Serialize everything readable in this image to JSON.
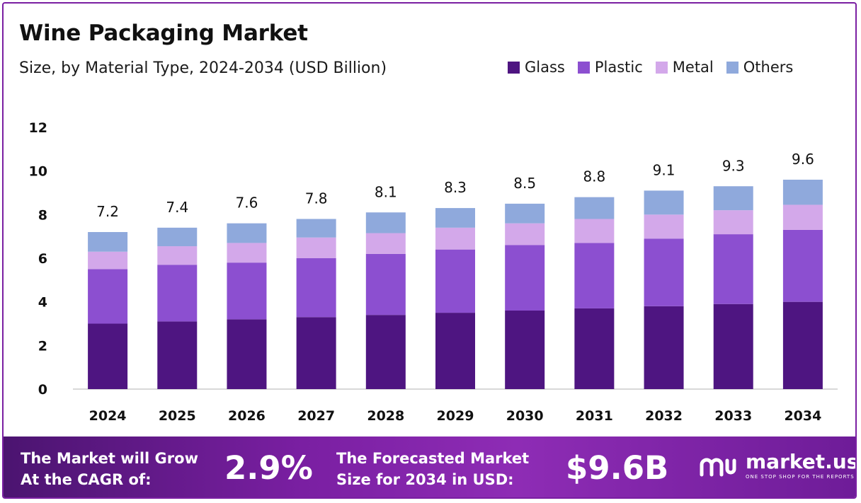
{
  "header": {
    "title": "Wine Packaging Market",
    "subtitle": "Size, by Material Type, 2024-2034 (USD Billion)"
  },
  "legend": [
    {
      "label": "Glass",
      "color": "#4e1581"
    },
    {
      "label": "Plastic",
      "color": "#8c4fd0"
    },
    {
      "label": "Metal",
      "color": "#d3a8ea"
    },
    {
      "label": "Others",
      "color": "#8fa9dc"
    }
  ],
  "chart_data": {
    "type": "bar",
    "stacked": true,
    "title": "Wine Packaging Market",
    "subtitle": "Size, by Material Type, 2024-2034 (USD Billion)",
    "xlabel": "",
    "ylabel": "",
    "ylim": [
      0,
      12
    ],
    "yticks": [
      0,
      2,
      4,
      6,
      8,
      10,
      12
    ],
    "grid": false,
    "legend_position": "top-right",
    "categories": [
      "2024",
      "2025",
      "2026",
      "2027",
      "2028",
      "2029",
      "2030",
      "2031",
      "2032",
      "2033",
      "2034"
    ],
    "totals": [
      "7.2",
      "7.4",
      "7.6",
      "7.8",
      "8.1",
      "8.3",
      "8.5",
      "8.8",
      "9.1",
      "9.3",
      "9.6"
    ],
    "series": [
      {
        "name": "Glass",
        "color": "#4e1581",
        "values": [
          3.0,
          3.1,
          3.2,
          3.3,
          3.4,
          3.5,
          3.6,
          3.7,
          3.8,
          3.9,
          4.0
        ]
      },
      {
        "name": "Plastic",
        "color": "#8c4fd0",
        "values": [
          2.5,
          2.6,
          2.6,
          2.7,
          2.8,
          2.9,
          3.0,
          3.0,
          3.1,
          3.2,
          3.3
        ]
      },
      {
        "name": "Metal",
        "color": "#d3a8ea",
        "values": [
          0.8,
          0.85,
          0.9,
          0.95,
          0.95,
          1.0,
          1.0,
          1.1,
          1.1,
          1.1,
          1.15
        ]
      },
      {
        "name": "Others",
        "color": "#8fa9dc",
        "values": [
          0.9,
          0.85,
          0.9,
          0.85,
          0.95,
          0.9,
          0.9,
          1.0,
          1.1,
          1.1,
          1.15
        ]
      }
    ]
  },
  "footer": {
    "cagr_label_line1": "The Market will Grow",
    "cagr_label_line2": "At the CAGR of:",
    "cagr_value": "2.9%",
    "forecast_label_line1": "The Forecasted Market",
    "forecast_label_line2": "Size for 2034 in USD:",
    "forecast_value": "$9.6B",
    "brand_name": "market.us",
    "brand_tagline": "ONE STOP SHOP FOR THE REPORTS"
  }
}
